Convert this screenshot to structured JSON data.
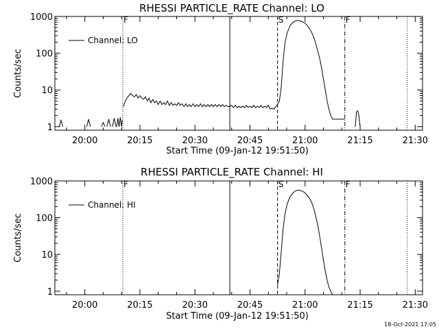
{
  "footer_timestamp": "18-Oct-2021 17:05",
  "chart_data": [
    {
      "type": "line",
      "title": "RHESSI PARTICLE_RATE Channel: LO",
      "xlabel": "Start Time (09-Jan-12 19:51:50)",
      "ylabel": "Counts/sec",
      "ylog": true,
      "xlim": [
        "19:51:50",
        "21:32:00"
      ],
      "ylim": [
        0.8,
        1000
      ],
      "x_ticks": [
        "20:00",
        "20:15",
        "20:30",
        "20:45",
        "21:00",
        "21:15",
        "21:30"
      ],
      "y_ticks": [
        "1",
        "10",
        "100",
        "1000"
      ],
      "legend": {
        "label": "Channel: LO",
        "position": "top-left"
      },
      "markers": [
        {
          "time": "20:10:20",
          "label": "F",
          "style": "dotted"
        },
        {
          "time": "20:39:30",
          "label": "",
          "style": "solid"
        },
        {
          "time": "20:52:30",
          "label": "S",
          "style": "dashed"
        },
        {
          "time": "21:10:50",
          "label": "F",
          "style": "dashdot"
        },
        {
          "time": "21:27:50",
          "label": "",
          "style": "dotted"
        }
      ],
      "series": [
        {
          "segments": [
            {
              "x": [
                "19:53:00",
                "19:53:30",
                "19:54:00"
              ],
              "y": [
                1,
                1.5,
                1
              ]
            },
            {
              "x": [
                "20:00:30",
                "20:01:00",
                "20:01:30"
              ],
              "y": [
                1,
                1.6,
                1
              ]
            },
            {
              "x": [
                "20:04:30",
                "20:05:00",
                "20:05:30"
              ],
              "y": [
                1,
                1.3,
                1
              ]
            },
            {
              "x": [
                "20:06:00",
                "20:06:30",
                "20:07:00"
              ],
              "y": [
                1,
                1.6,
                1
              ]
            },
            {
              "x": [
                "20:07:30",
                "20:08:00",
                "20:08:30"
              ],
              "y": [
                1,
                1.7,
                1
              ]
            },
            {
              "x": [
                "20:08:40",
                "20:09:00",
                "20:09:20",
                "20:09:40",
                "20:10:00",
                "20:10:10"
              ],
              "y": [
                1,
                1.7,
                1,
                1.8,
                1,
                1.5
              ]
            },
            {
              "x": [
                "20:10:30",
                "20:11:00",
                "20:11:30",
                "20:12:00",
                "20:12:30",
                "20:13:00",
                "20:13:30",
                "20:14:00",
                "20:14:30",
                "20:15:00",
                "20:15:30",
                "20:16:00",
                "20:16:30",
                "20:17:00",
                "20:17:30",
                "20:18:00",
                "20:18:30",
                "20:19:00",
                "20:19:30",
                "20:20:00",
                "20:20:30",
                "20:21:00",
                "20:21:30",
                "20:22:00",
                "20:22:30",
                "20:23:00",
                "20:23:30",
                "20:24:00",
                "20:24:30",
                "20:25:00",
                "20:25:30",
                "20:26:00",
                "20:26:30",
                "20:27:00",
                "20:27:30",
                "20:28:00",
                "20:28:30",
                "20:29:00",
                "20:29:30",
                "20:30:00",
                "20:30:30",
                "20:31:00",
                "20:31:30",
                "20:32:00",
                "20:32:30",
                "20:33:00",
                "20:33:30",
                "20:34:00",
                "20:34:30",
                "20:35:00",
                "20:35:30",
                "20:36:00",
                "20:36:30",
                "20:37:00",
                "20:37:30",
                "20:38:00",
                "20:38:30",
                "20:39:00",
                "20:39:30"
              ],
              "y": [
                3.5,
                5,
                6,
                7,
                8,
                7,
                6.5,
                7.5,
                6,
                7,
                6,
                5.5,
                6.5,
                5,
                6,
                4.5,
                5.5,
                4.5,
                5,
                4,
                5,
                4,
                4.5,
                4,
                5,
                3.8,
                4.5,
                3.8,
                4.2,
                3.8,
                4.5,
                3.8,
                4.2,
                3.5,
                4.2,
                3.5,
                4,
                3.5,
                4.2,
                3.5,
                4,
                3.5,
                4.2,
                3.5,
                4,
                3.5,
                4,
                3.5,
                4,
                3.5,
                4,
                3.5,
                4,
                3.5,
                4,
                3.5,
                3.8,
                3.5,
                3.6
              ]
            },
            {
              "x": [
                "20:39:30",
                "20:40:00",
                "20:40:30",
                "20:41:00",
                "20:41:30",
                "20:42:00",
                "20:42:30",
                "20:43:00",
                "20:43:30",
                "20:44:00",
                "20:44:30",
                "20:45:00",
                "20:45:30",
                "20:46:00",
                "20:46:30",
                "20:47:00",
                "20:47:30",
                "20:48:00",
                "20:48:30",
                "20:49:00",
                "20:49:30",
                "20:50:00",
                "20:50:30",
                "20:51:00",
                "20:51:30",
                "20:52:00",
                "20:52:30",
                "20:53:00",
                "20:53:30",
                "20:54:00",
                "20:54:30",
                "20:55:00",
                "20:55:30",
                "20:56:00",
                "20:56:30",
                "20:57:00",
                "20:57:30",
                "20:58:00",
                "20:58:30",
                "20:59:00",
                "20:59:30",
                "21:00:00",
                "21:00:30",
                "21:01:00",
                "21:01:30",
                "21:02:00",
                "21:02:30",
                "21:03:00",
                "21:03:30",
                "21:04:00",
                "21:04:30",
                "21:05:00",
                "21:05:30",
                "21:06:00",
                "21:06:30",
                "21:07:00",
                "21:07:30",
                "21:08:00",
                "21:08:30",
                "21:09:00",
                "21:10:00",
                "21:10:50"
              ],
              "y": [
                3.5,
                3.8,
                3.3,
                3.8,
                3.3,
                3.6,
                3.3,
                3.6,
                3.3,
                3.8,
                3.3,
                3.6,
                3.3,
                3.8,
                3.3,
                3.6,
                3.3,
                3.8,
                3.3,
                3.6,
                3.3,
                3.8,
                3,
                3.2,
                3,
                3.5,
                4,
                5,
                12,
                60,
                180,
                320,
                450,
                580,
                650,
                720,
                760,
                780,
                760,
                740,
                700,
                650,
                580,
                500,
                420,
                330,
                250,
                170,
                110,
                70,
                40,
                20,
                10,
                5,
                3,
                2,
                1.6,
                1.6,
                1.6,
                1.6,
                1.6,
                1.6
              ]
            },
            {
              "x": [
                "21:13:40",
                "21:14:00",
                "21:14:20",
                "21:14:40",
                "21:15:00"
              ],
              "y": [
                1,
                2.5,
                2.7,
                2,
                1
              ]
            }
          ]
        }
      ]
    },
    {
      "type": "line",
      "title": "RHESSI PARTICLE_RATE Channel: HI",
      "xlabel": "Start Time (09-Jan-12 19:51:50)",
      "ylabel": "Counts/sec",
      "ylog": true,
      "xlim": [
        "19:51:50",
        "21:32:00"
      ],
      "ylim": [
        0.8,
        1000
      ],
      "x_ticks": [
        "20:00",
        "20:15",
        "20:30",
        "20:45",
        "21:00",
        "21:15",
        "21:30"
      ],
      "y_ticks": [
        "1",
        "10",
        "100",
        "1000"
      ],
      "legend": {
        "label": "Channel: HI",
        "position": "top-left"
      },
      "markers": [
        {
          "time": "20:10:20",
          "label": "F",
          "style": "dotted"
        },
        {
          "time": "20:39:30",
          "label": "",
          "style": "solid"
        },
        {
          "time": "20:52:30",
          "label": "S",
          "style": "dashed"
        },
        {
          "time": "21:10:50",
          "label": "F",
          "style": "dashdot"
        },
        {
          "time": "21:27:50",
          "label": "",
          "style": "dotted"
        }
      ],
      "series": [
        {
          "segments": [
            {
              "x": [
                "20:52:30",
                "20:53:00",
                "20:53:30",
                "20:54:00",
                "20:54:30",
                "20:55:00",
                "20:55:30",
                "20:56:00",
                "20:56:30",
                "20:57:00",
                "20:57:30",
                "20:58:00",
                "20:58:30",
                "20:59:00",
                "20:59:30",
                "21:00:00",
                "21:00:30",
                "21:01:00",
                "21:01:30",
                "21:02:00",
                "21:02:30",
                "21:03:00",
                "21:03:30",
                "21:04:00",
                "21:04:30",
                "21:05:00",
                "21:05:30",
                "21:06:00",
                "21:06:30",
                "21:07:00",
                "21:07:30"
              ],
              "y": [
                1.5,
                3,
                12,
                50,
                120,
                210,
                300,
                380,
                450,
                500,
                540,
                560,
                560,
                540,
                510,
                470,
                420,
                360,
                300,
                230,
                160,
                100,
                60,
                30,
                15,
                7,
                3.5,
                2,
                1.3,
                1,
                0.8
              ]
            }
          ]
        }
      ]
    }
  ]
}
